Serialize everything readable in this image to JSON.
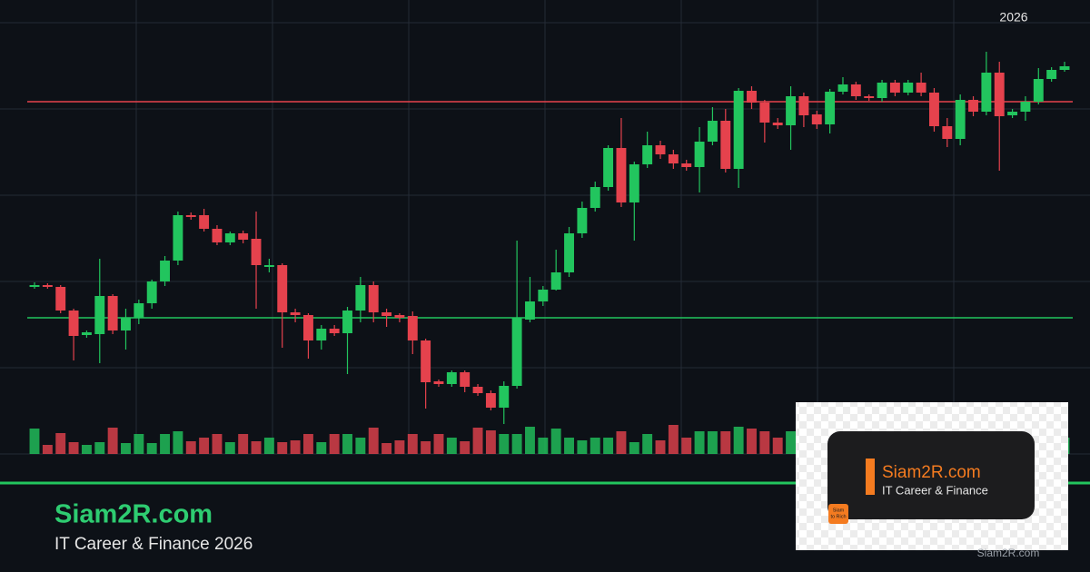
{
  "chart_data": {
    "type": "candlestick",
    "year_label": "2026",
    "up_color": "#22c55e",
    "down_color": "#e5424d",
    "open": [
      184,
      186,
      184,
      158,
      131,
      132,
      174,
      136,
      150,
      166,
      190,
      213,
      263,
      263,
      248,
      233,
      243,
      237,
      206,
      208,
      156,
      153,
      125,
      138,
      133,
      158,
      186,
      156,
      153,
      152,
      125,
      80,
      77,
      90,
      74,
      67,
      51,
      75,
      148,
      168,
      181,
      200,
      243,
      271,
      294,
      337,
      277,
      319,
      340,
      330,
      320,
      316,
      344,
      367,
      314,
      400,
      387,
      365,
      362,
      394,
      374,
      363,
      399,
      407,
      394,
      392,
      409,
      398,
      409,
      398,
      361,
      347,
      390,
      377,
      420,
      373,
      377,
      388,
      413,
      423
    ],
    "close": [
      186,
      184,
      158,
      130,
      134,
      174,
      136,
      150,
      166,
      190,
      213,
      263,
      261,
      248,
      233,
      243,
      236,
      208,
      208,
      156,
      153,
      125,
      138,
      133,
      158,
      186,
      156,
      152,
      150,
      125,
      79,
      77,
      90,
      74,
      67,
      51,
      75,
      150,
      168,
      181,
      200,
      243,
      271,
      294,
      337,
      277,
      319,
      340,
      330,
      320,
      316,
      344,
      367,
      314,
      400,
      387,
      365,
      362,
      394,
      373,
      363,
      399,
      407,
      394,
      392,
      409,
      398,
      409,
      398,
      361,
      347,
      390,
      377,
      420,
      372,
      377,
      388,
      413,
      423,
      427
    ],
    "high": [
      189,
      188,
      186,
      160,
      136,
      215,
      176,
      160,
      170,
      192,
      218,
      267,
      266,
      270,
      252,
      245,
      246,
      267,
      215,
      210,
      160,
      155,
      142,
      142,
      162,
      195,
      190,
      160,
      155,
      157,
      127,
      82,
      92,
      92,
      77,
      70,
      80,
      235,
      195,
      185,
      225,
      250,
      278,
      300,
      340,
      370,
      322,
      355,
      345,
      335,
      324,
      360,
      382,
      380,
      403,
      405,
      390,
      370,
      405,
      398,
      378,
      402,
      415,
      410,
      396,
      412,
      412,
      412,
      420,
      403,
      370,
      396,
      394,
      443,
      432,
      380,
      394,
      425,
      426,
      432
    ],
    "low": [
      182,
      182,
      155,
      103,
      128,
      100,
      132,
      115,
      143,
      160,
      185,
      208,
      258,
      245,
      230,
      230,
      232,
      160,
      200,
      117,
      145,
      105,
      115,
      130,
      88,
      145,
      145,
      140,
      145,
      110,
      50,
      74,
      74,
      68,
      64,
      48,
      33,
      72,
      145,
      163,
      180,
      195,
      238,
      267,
      290,
      272,
      235,
      315,
      325,
      314,
      312,
      288,
      340,
      310,
      293,
      380,
      343,
      358,
      335,
      360,
      358,
      353,
      396,
      390,
      389,
      388,
      394,
      395,
      394,
      355,
      338,
      340,
      372,
      373,
      312,
      370,
      367,
      385,
      410,
      421
    ],
    "volume": [
      28,
      10,
      23,
      13,
      10,
      13,
      29,
      12,
      22,
      12,
      22,
      25,
      14,
      18,
      22,
      13,
      22,
      14,
      18,
      13,
      15,
      22,
      13,
      22,
      22,
      18,
      29,
      12,
      15,
      22,
      14,
      22,
      18,
      14,
      29,
      26,
      22,
      22,
      30,
      18,
      28,
      18,
      15,
      18,
      18,
      25,
      13,
      22,
      15,
      32,
      18,
      25,
      25,
      25,
      30,
      28,
      25,
      18,
      25,
      20,
      20,
      20,
      20,
      20,
      20,
      20,
      20,
      20,
      20,
      20,
      20,
      20,
      20,
      20,
      20,
      20,
      20,
      20,
      20,
      18
    ],
    "levels": [
      {
        "value": 388,
        "color": "#e5424d"
      },
      {
        "value": 150,
        "color": "#22c55e"
      }
    ]
  },
  "brand": {
    "name": "Siam2R.com",
    "tagline": "IT Career & Finance 2026"
  },
  "card": {
    "name": "Siam2R.com",
    "tagline": "IT Career & Finance",
    "logo_text": [
      "Siam",
      "to Rich"
    ],
    "footer": "Siam2R.com"
  }
}
